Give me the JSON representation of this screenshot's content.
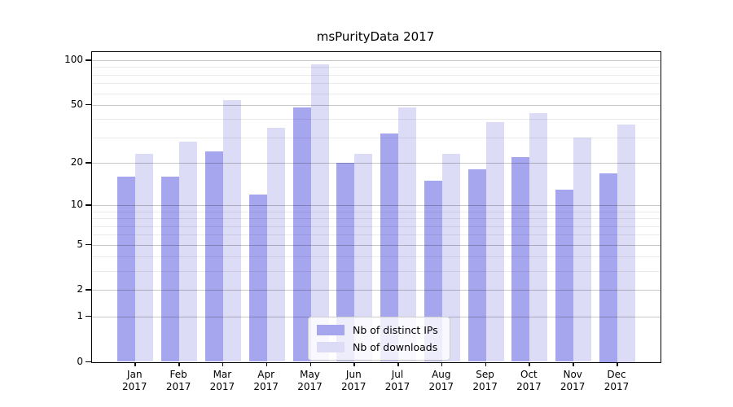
{
  "chart_data": {
    "type": "bar",
    "title": "msPurityData 2017",
    "categories": [
      "Jan",
      "Feb",
      "Mar",
      "Apr",
      "May",
      "Jun",
      "Jul",
      "Aug",
      "Sep",
      "Oct",
      "Nov",
      "Dec"
    ],
    "year_label": "2017",
    "series": [
      {
        "name": "Nb of distinct IPs",
        "color": "#a6a6ee",
        "values": [
          16,
          16,
          24,
          12,
          48,
          20,
          32,
          15,
          18,
          22,
          13,
          17
        ]
      },
      {
        "name": "Nb of downloads",
        "color": "#dcdcf7",
        "values": [
          23,
          28,
          54,
          35,
          94,
          23,
          48,
          23,
          38,
          44,
          30,
          37
        ]
      }
    ],
    "y_scale": "log1p",
    "y_major_ticks": [
      0,
      1,
      2,
      5,
      10,
      20,
      50,
      100
    ],
    "y_minor_ticks": [
      3,
      4,
      6,
      7,
      8,
      9,
      30,
      40,
      60,
      70,
      80,
      90
    ],
    "ylim": [
      0,
      100
    ],
    "xlabel": "",
    "ylabel": "",
    "grid": true,
    "legend_position": "bottom-center"
  },
  "colors": {
    "major_grid": "#c3c3c3",
    "minor_grid": "#ececec",
    "axis": "#000000",
    "background": "#ffffff"
  }
}
